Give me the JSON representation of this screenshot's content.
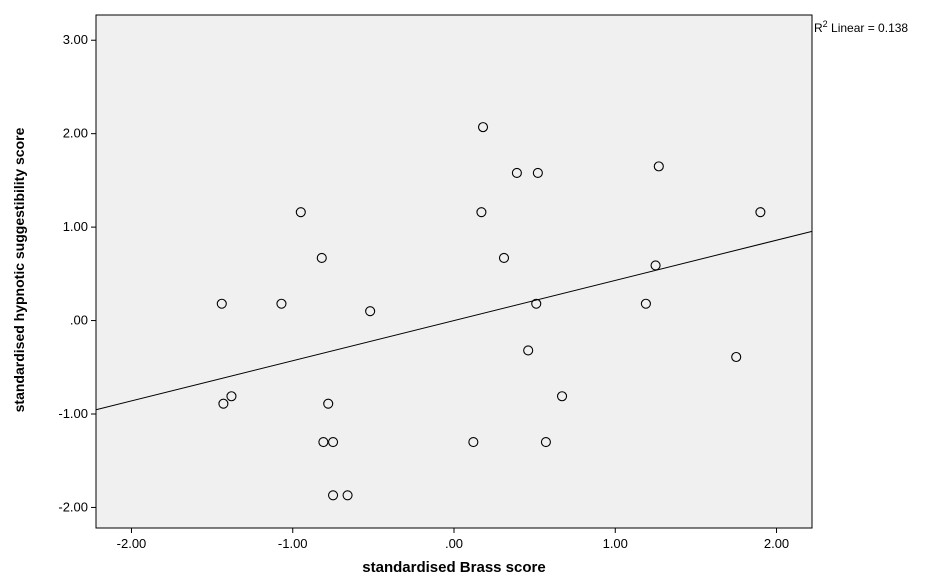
{
  "chart_data": {
    "type": "scatter",
    "title": "",
    "xlabel": "standardised Brass score",
    "ylabel": "standardised hypnotic suggestibility score",
    "xlim": [
      -2.22,
      2.22
    ],
    "ylim": [
      -2.22,
      3.27
    ],
    "x_ticks": [
      -2.0,
      -1.0,
      0.0,
      1.0,
      2.0
    ],
    "x_tick_labels": [
      "-2.00",
      "-1.00",
      ".00",
      "1.00",
      "2.00"
    ],
    "y_ticks": [
      -2.0,
      -1.0,
      0.0,
      1.0,
      2.0,
      3.0
    ],
    "y_tick_labels": [
      "-2.00",
      "-1.00",
      ".00",
      "1.00",
      "2.00",
      "3.00"
    ],
    "grid": false,
    "plot_background": "#f0f0f0",
    "marker": "hollow-circle",
    "fit_line": {
      "type": "linear",
      "slope": 0.43,
      "intercept": 0.0
    },
    "annotation": {
      "r2_prefix": "R",
      "r2_sup": "2",
      "r2_text": " Linear = 0.138"
    },
    "points": [
      {
        "x": -1.44,
        "y": 0.18
      },
      {
        "x": -1.43,
        "y": -0.89
      },
      {
        "x": -1.38,
        "y": -0.81
      },
      {
        "x": -1.07,
        "y": 0.18
      },
      {
        "x": -0.95,
        "y": 1.16
      },
      {
        "x": -0.82,
        "y": 0.67
      },
      {
        "x": -0.81,
        "y": -1.3
      },
      {
        "x": -0.78,
        "y": -0.89
      },
      {
        "x": -0.75,
        "y": -1.3
      },
      {
        "x": -0.75,
        "y": -1.87
      },
      {
        "x": -0.66,
        "y": -1.87
      },
      {
        "x": -0.52,
        "y": 0.1
      },
      {
        "x": 0.12,
        "y": -1.3
      },
      {
        "x": 0.17,
        "y": 1.16
      },
      {
        "x": 0.18,
        "y": 2.07
      },
      {
        "x": 0.31,
        "y": 0.67
      },
      {
        "x": 0.39,
        "y": 1.58
      },
      {
        "x": 0.46,
        "y": -0.32
      },
      {
        "x": 0.51,
        "y": 0.18
      },
      {
        "x": 0.52,
        "y": 1.58
      },
      {
        "x": 0.57,
        "y": -1.3
      },
      {
        "x": 0.67,
        "y": -0.81
      },
      {
        "x": 1.19,
        "y": 0.18
      },
      {
        "x": 1.25,
        "y": 0.59
      },
      {
        "x": 1.27,
        "y": 1.65
      },
      {
        "x": 1.75,
        "y": -0.39
      },
      {
        "x": 1.9,
        "y": 1.16
      }
    ]
  }
}
